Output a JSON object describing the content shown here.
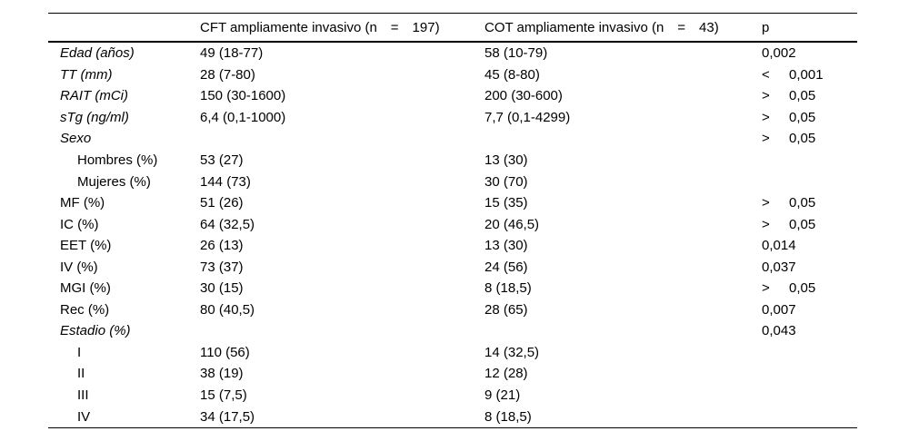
{
  "table": {
    "headers": {
      "label_col": "",
      "cft_col": "CFT ampliamente invasivo (n = 197)",
      "cot_col": "COT ampliamente invasivo (n = 43)",
      "p_col": "p"
    },
    "rows": [
      {
        "label": "Edad (años)",
        "italic": true,
        "indent": false,
        "cft": "49 (18-77)",
        "cot": "58 (10-79)",
        "p_op": "",
        "p": "0,002"
      },
      {
        "label": "TT (mm)",
        "italic": true,
        "indent": false,
        "cft": "28 (7-80)",
        "cot": "45 (8-80)",
        "p_op": "<",
        "p": "0,001"
      },
      {
        "label": "RAIT (mCi)",
        "italic": true,
        "indent": false,
        "cft": "150 (30-1600)",
        "cot": "200 (30-600)",
        "p_op": ">",
        "p": "0,05"
      },
      {
        "label": "sTg (ng/ml)",
        "italic": true,
        "indent": false,
        "cft": "6,4 (0,1-1000)",
        "cot": "7,7 (0,1-4299)",
        "p_op": ">",
        "p": "0,05"
      },
      {
        "label": "Sexo",
        "italic": true,
        "indent": false,
        "cft": "",
        "cot": "",
        "p_op": ">",
        "p": "0,05"
      },
      {
        "label": "Hombres (%)",
        "italic": false,
        "indent": true,
        "cft": "53 (27)",
        "cot": "13 (30)",
        "p_op": "",
        "p": ""
      },
      {
        "label": "Mujeres (%)",
        "italic": false,
        "indent": true,
        "cft": "144 (73)",
        "cot": "30 (70)",
        "p_op": "",
        "p": ""
      },
      {
        "label": "MF (%)",
        "italic": false,
        "indent": false,
        "cft": "51 (26)",
        "cot": "15 (35)",
        "p_op": ">",
        "p": "0,05"
      },
      {
        "label": "IC (%)",
        "italic": false,
        "indent": false,
        "cft": "64 (32,5)",
        "cot": "20 (46,5)",
        "p_op": ">",
        "p": "0,05"
      },
      {
        "label": "EET (%)",
        "italic": false,
        "indent": false,
        "cft": "26 (13)",
        "cot": "13 (30)",
        "p_op": "",
        "p": "0,014"
      },
      {
        "label": "IV (%)",
        "italic": false,
        "indent": false,
        "cft": "73 (37)",
        "cot": "24 (56)",
        "p_op": "",
        "p": "0,037"
      },
      {
        "label": "MGI (%)",
        "italic": false,
        "indent": false,
        "cft": "30 (15)",
        "cot": "8 (18,5)",
        "p_op": ">",
        "p": "0,05"
      },
      {
        "label": "Rec (%)",
        "italic": false,
        "indent": false,
        "cft": "80 (40,5)",
        "cot": "28 (65)",
        "p_op": "",
        "p": "0,007"
      },
      {
        "label": "Estadio (%)",
        "italic": true,
        "indent": false,
        "cft": "",
        "cot": "",
        "p_op": "",
        "p": "0,043"
      },
      {
        "label": "I",
        "italic": false,
        "indent": true,
        "cft": "110 (56)",
        "cot": "14 (32,5)",
        "p_op": "",
        "p": ""
      },
      {
        "label": "II",
        "italic": false,
        "indent": true,
        "cft": "38 (19)",
        "cot": "12 (28)",
        "p_op": "",
        "p": ""
      },
      {
        "label": "III",
        "italic": false,
        "indent": true,
        "cft": "15 (7,5)",
        "cot": "9 (21)",
        "p_op": "",
        "p": ""
      },
      {
        "label": "IV",
        "italic": false,
        "indent": true,
        "cft": "34 (17,5)",
        "cot": "8 (18,5)",
        "p_op": "",
        "p": ""
      }
    ]
  }
}
